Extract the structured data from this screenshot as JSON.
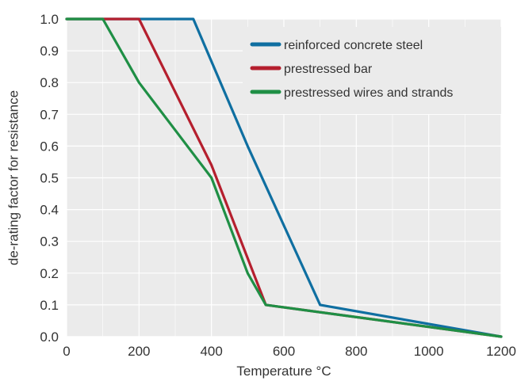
{
  "chart_data": {
    "type": "line",
    "xlabel": "Temperature °C",
    "ylabel": "de-rating factor for resistance",
    "xlim": [
      0,
      1200
    ],
    "ylim": [
      0.0,
      1.0
    ],
    "xticks": [
      0,
      200,
      400,
      600,
      800,
      1000,
      1200
    ],
    "yticks": [
      0.0,
      0.1,
      0.2,
      0.3,
      0.4,
      0.5,
      0.6,
      0.7,
      0.8,
      0.9,
      1.0
    ],
    "xtick_labels": [
      "0",
      "200",
      "400",
      "600",
      "800",
      "1000",
      "1200"
    ],
    "ytick_labels": [
      "0.0",
      "0.1",
      "0.2",
      "0.3",
      "0.4",
      "0.5",
      "0.6",
      "0.7",
      "0.8",
      "0.9",
      "1.0"
    ],
    "grid": true,
    "background": "#ebebeb",
    "legend_position": "top-right",
    "series": [
      {
        "name": "reinforced concrete steel",
        "color": "#0f6fa1",
        "x": [
          0,
          350,
          500,
          700,
          1200
        ],
        "y": [
          1.0,
          1.0,
          0.6,
          0.1,
          0.0
        ]
      },
      {
        "name": "prestressed bar",
        "color": "#b51f2e",
        "x": [
          0,
          200,
          400,
          550,
          1200
        ],
        "y": [
          1.0,
          1.0,
          0.54,
          0.1,
          0.0
        ]
      },
      {
        "name": "prestressed wires and strands",
        "color": "#1f8f45",
        "x": [
          0,
          100,
          200,
          300,
          400,
          500,
          550,
          1200
        ],
        "y": [
          1.0,
          1.0,
          0.8,
          0.65,
          0.5,
          0.2,
          0.1,
          0.0
        ]
      }
    ]
  }
}
